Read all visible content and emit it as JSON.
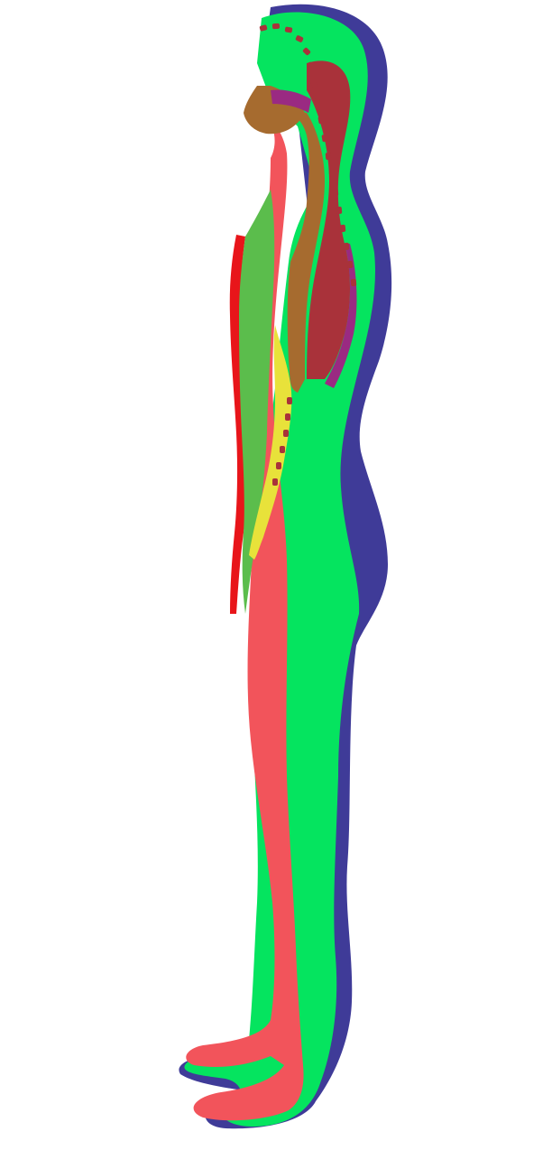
{
  "figure": {
    "subject": "human-body-side-profile-segmentation",
    "background": "#ffffff",
    "regions": [
      {
        "id": "back-outline",
        "color": "#3f3b98"
      },
      {
        "id": "body-main",
        "color": "#05e45f"
      },
      {
        "id": "front-limbs",
        "color": "#f2545b"
      },
      {
        "id": "front-edge",
        "color": "#e8151a"
      },
      {
        "id": "chest-front",
        "color": "#5bbd4c"
      },
      {
        "id": "torso-brown",
        "color": "#a66b2f"
      },
      {
        "id": "back-torso-dark-red",
        "color": "#a9323a"
      },
      {
        "id": "back-torso-purple",
        "color": "#9a2a82"
      },
      {
        "id": "face-brown",
        "color": "#a66b2f"
      },
      {
        "id": "eye-band",
        "color": "#9a2a82"
      },
      {
        "id": "yellow-strip",
        "color": "#e8e23a"
      },
      {
        "id": "spine-dashes",
        "color": "#a9323a"
      }
    ]
  }
}
